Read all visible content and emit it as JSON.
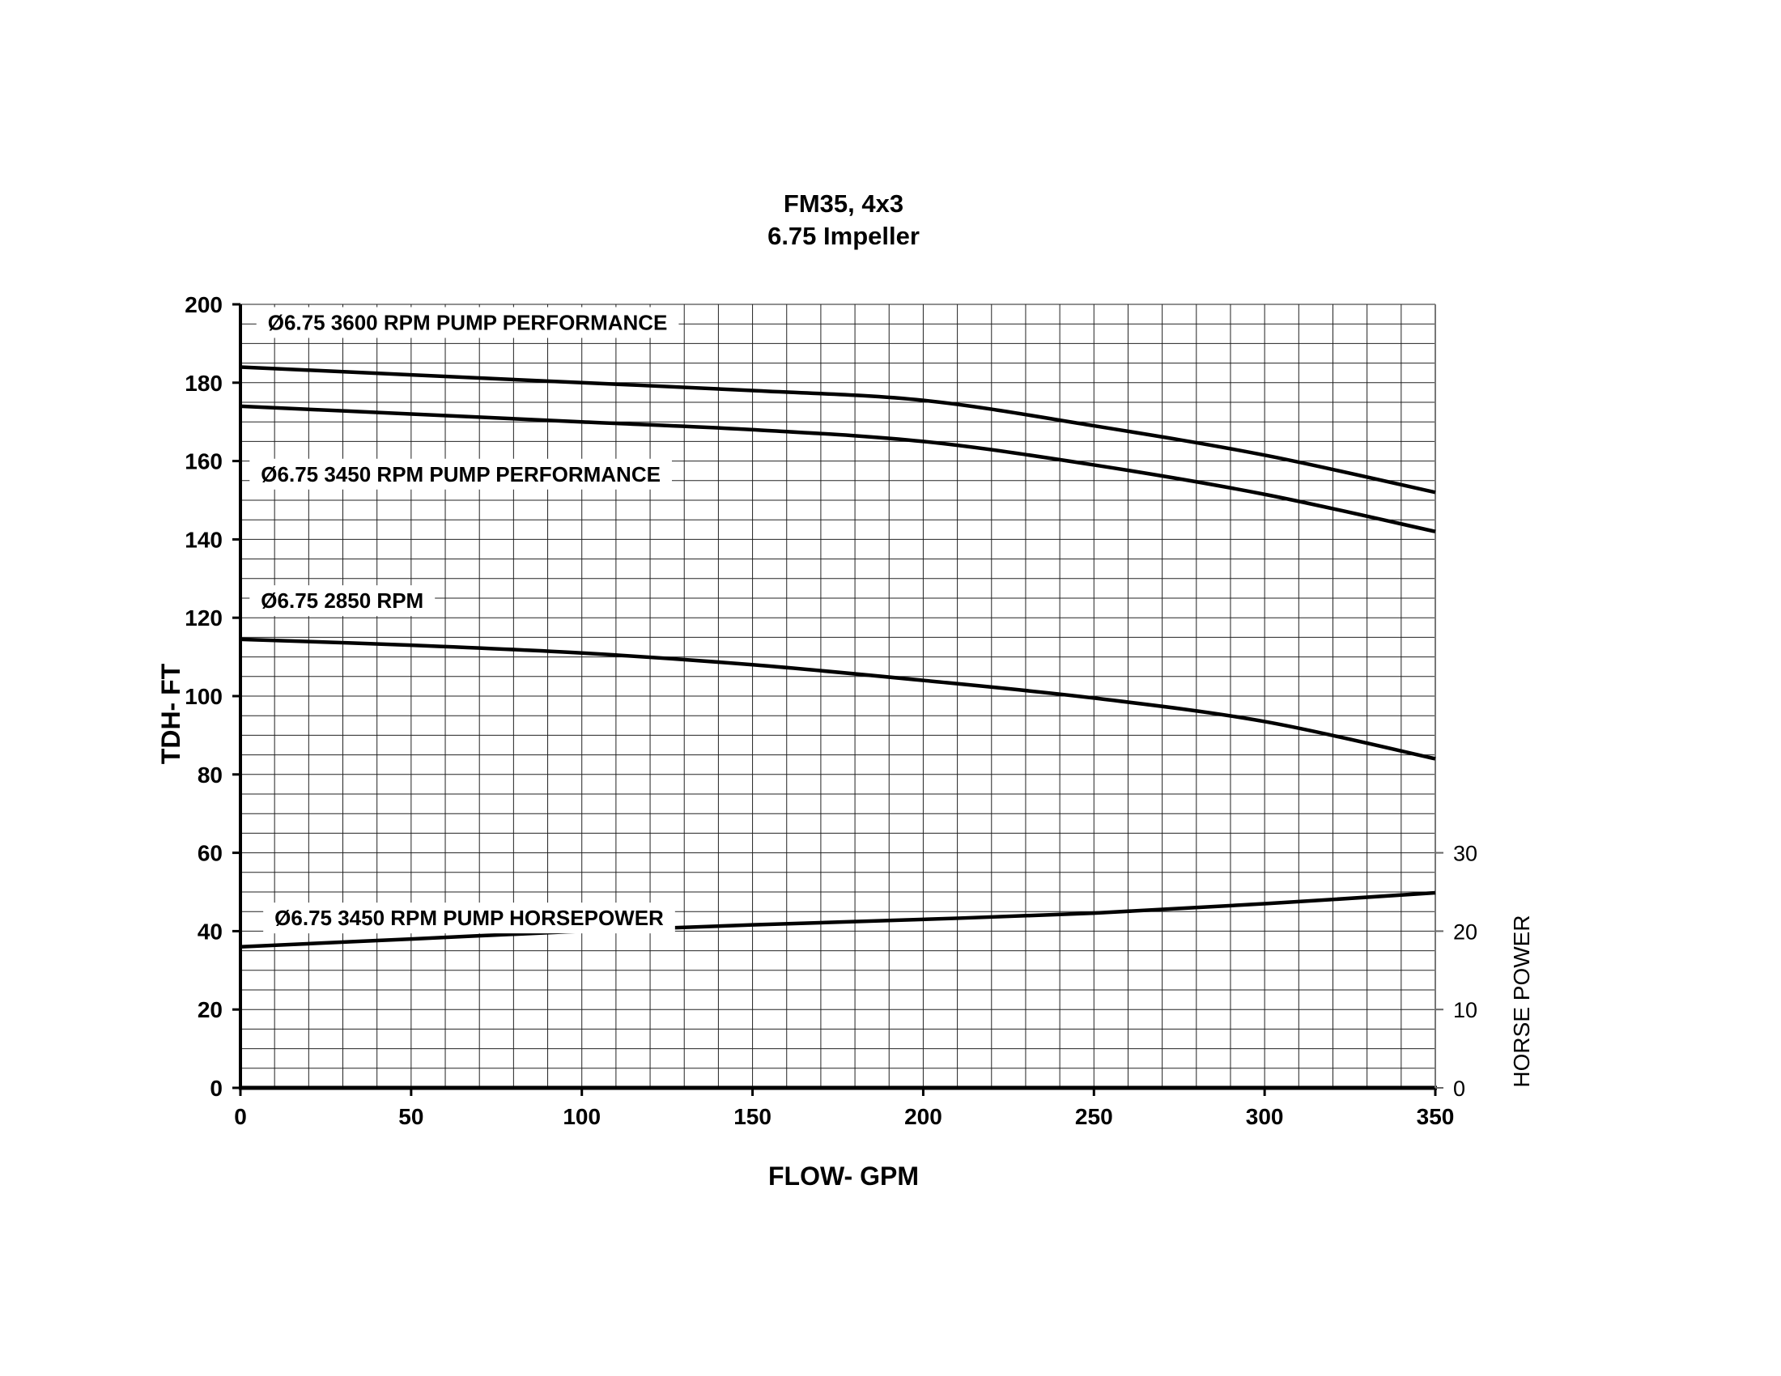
{
  "chart_data": {
    "type": "line",
    "title": "FM35, 4x3",
    "subtitle": "6.75 Impeller",
    "xlabel": "FLOW- GPM",
    "ylabel": "TDH- FT",
    "y2label": "HORSE POWER",
    "xlim": [
      0,
      350
    ],
    "ylim": [
      0,
      200
    ],
    "y2lim": [
      0,
      30
    ],
    "xticks": [
      "0",
      "50",
      "100",
      "150",
      "200",
      "250",
      "300",
      "350"
    ],
    "yticks": [
      "0",
      "20",
      "40",
      "60",
      "80",
      "100",
      "120",
      "140",
      "160",
      "180",
      "200"
    ],
    "y2ticks": [
      "0",
      "10",
      "20",
      "30"
    ],
    "grid": true,
    "series": [
      {
        "name": "Ø6.75 3600 RPM PUMP PERFORMANCE",
        "axis": "left",
        "x": [
          0,
          50,
          100,
          150,
          200,
          250,
          300,
          350
        ],
        "y": [
          184,
          182,
          180,
          178,
          175.5,
          169,
          161.5,
          152
        ]
      },
      {
        "name": "Ø6.75 3450 RPM PUMP PERFORMANCE",
        "axis": "left",
        "x": [
          0,
          50,
          100,
          150,
          200,
          250,
          300,
          350
        ],
        "y": [
          174,
          172,
          170,
          168,
          165,
          159,
          151.5,
          142
        ]
      },
      {
        "name": "Ø6.75 2850 RPM",
        "axis": "left",
        "x": [
          0,
          50,
          100,
          150,
          200,
          250,
          300,
          350
        ],
        "y": [
          114.5,
          113,
          111,
          108,
          104,
          99.5,
          93.5,
          84
        ]
      },
      {
        "name": "Ø6.75 3450 RPM PUMP HORSEPOWER",
        "axis": "right",
        "x": [
          0,
          50,
          100,
          150,
          200,
          250,
          300,
          350
        ],
        "y": [
          18,
          19,
          20,
          20.8,
          21.5,
          22.3,
          23.5,
          24.9
        ]
      }
    ]
  }
}
